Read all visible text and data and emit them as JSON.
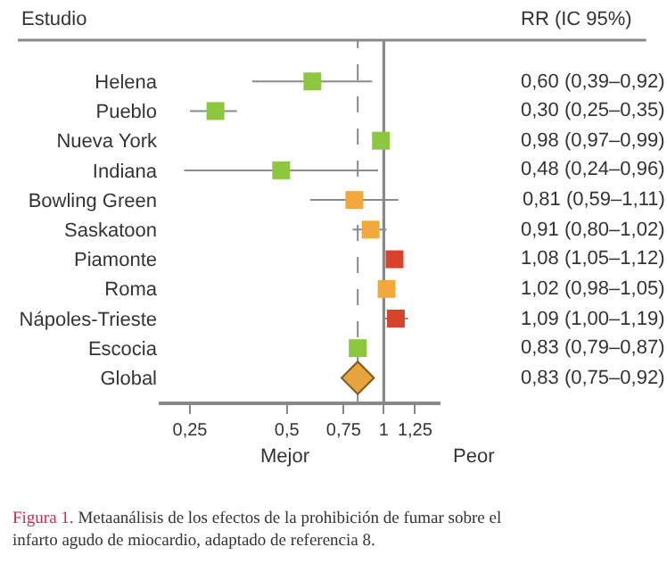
{
  "chart_data": {
    "type": "scatter",
    "orientation": "horizontal",
    "log": "x",
    "categories": [
      "Helena",
      "Pueblo",
      "Nueva York",
      "Indiana",
      "Bowling Green",
      "Saskatoon",
      "Piamonte",
      "Roma",
      "Nápoles-Trieste",
      "Escocia",
      "Global"
    ],
    "series": [
      {
        "marker": "square",
        "colors": [
          "#8dc63f",
          "#8dc63f",
          "#8dc63f",
          "#8dc63f",
          "#f2a93b",
          "#f2a93b",
          "#d8432c",
          "#f2a93b",
          "#d8432c",
          "#8dc63f",
          null
        ],
        "values": [
          0.6,
          0.3,
          0.98,
          0.48,
          0.81,
          0.91,
          1.08,
          1.02,
          1.09,
          0.83,
          null
        ],
        "errors": [
          [
            0.39,
            0.92
          ],
          [
            0.25,
            0.35
          ],
          null,
          [
            0.24,
            0.96
          ],
          [
            0.59,
            1.11
          ],
          [
            0.8,
            1.02
          ],
          null,
          null,
          [
            1.0,
            1.19
          ],
          null,
          null
        ],
        "value_labels": [
          "0,60 (0,39–0,92)",
          "0,30 (0,25–0,35)",
          "0,98 (0,97–0,99)",
          "0,48 (0,24–0,96)",
          "0,81 (0,59–1,11)",
          "0,91 (0,80–1,02)",
          "1,08 (1,05–1,12)",
          "1,02 (0,98–1,05)",
          "1,09 (1,00–1,19)",
          "0,83 (0,79–0,87)",
          null
        ]
      },
      {
        "marker": "diamond",
        "color": "#e8a33c",
        "values": [
          null,
          null,
          null,
          null,
          null,
          null,
          null,
          null,
          null,
          null,
          0.83
        ],
        "errors": [
          null,
          null,
          null,
          null,
          null,
          null,
          null,
          null,
          null,
          null,
          [
            0.75,
            0.92
          ]
        ]
      }
    ],
    "xlim": [
      0.2,
      1.5
    ],
    "xticks": [
      {
        "value": 0.25,
        "label": "0,25"
      },
      {
        "value": 0.5,
        "label": "0,5"
      },
      {
        "value": 0.75,
        "label": "0,75"
      },
      {
        "value": 1,
        "label": "1"
      },
      {
        "value": 1.25,
        "label": "1,25"
      }
    ],
    "ref_lines": [
      {
        "axis": "x",
        "value": 1,
        "color": "#888888",
        "line_style": "solid"
      },
      {
        "axis": "x",
        "value": 0.83,
        "color": "#888888",
        "line_style": "dashed"
      }
    ],
    "annotations": [
      "Estudio",
      "RR (IC 95%)",
      "Mejor",
      "Peor",
      "Figura 1.",
      "Metaanálisis de los efectos de la prohibición de fumar sobre el infarto agudo de miocardio, adaptado de referencia 8.",
      "0,83 (0,75–0,92)"
    ],
    "grid": false
  }
}
